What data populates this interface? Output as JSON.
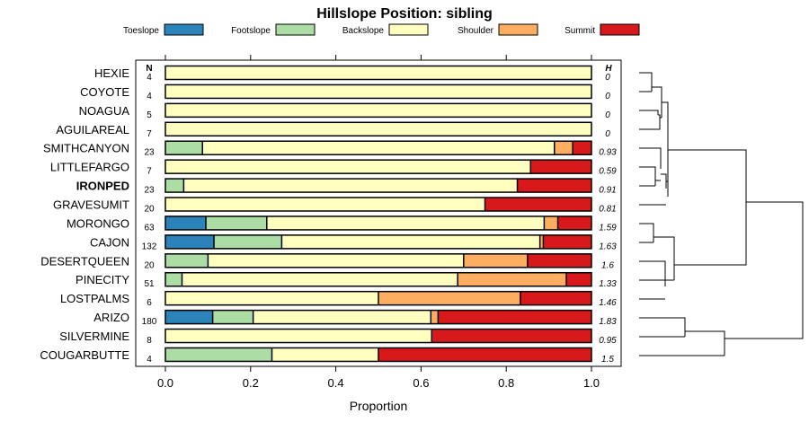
{
  "chart_data": {
    "type": "bar",
    "stacked": true,
    "orientation": "horizontal",
    "title": "Hillslope Position: sibling",
    "xlabel": "Proportion",
    "xlim": [
      0,
      1
    ],
    "x_ticks": [
      "0.0",
      "0.2",
      "0.4",
      "0.6",
      "0.8",
      "1.0"
    ],
    "n_header": "N",
    "h_header": "H",
    "highlighted": "IRONPED",
    "legend_position": "top",
    "legend": [
      {
        "name": "Toeslope",
        "color": "#2b83ba"
      },
      {
        "name": "Footslope",
        "color": "#abdda4"
      },
      {
        "name": "Backslope",
        "color": "#ffffbf"
      },
      {
        "name": "Shoulder",
        "color": "#fdae61"
      },
      {
        "name": "Summit",
        "color": "#d7191c"
      }
    ],
    "categories": [
      "HEXIE",
      "COYOTE",
      "NOAGUA",
      "AGUILAREAL",
      "SMITHCANYON",
      "LITTLEFARGO",
      "IRONPED",
      "GRAVESUMIT",
      "MORONGO",
      "CAJON",
      "DESERTQUEEN",
      "PINECITY",
      "LOSTPALMS",
      "ARIZO",
      "SILVERMINE",
      "COUGARBUTTE"
    ],
    "n": [
      "4",
      "4",
      "5",
      "7",
      "23",
      "7",
      "23",
      "20",
      "63",
      "132",
      "20",
      "51",
      "6",
      "180",
      "8",
      "4"
    ],
    "h": [
      "0",
      "0",
      "0",
      "0",
      "0.93",
      "0.59",
      "0.91",
      "0.81",
      "1.59",
      "1.63",
      "1.6",
      "1.33",
      "1.46",
      "1.83",
      "0.95",
      "1.5"
    ],
    "series": [
      {
        "name": "Toeslope",
        "values": [
          0,
          0,
          0,
          0,
          0,
          0,
          0,
          0,
          0.095,
          0.114,
          0,
          0,
          0,
          0.111,
          0,
          0
        ]
      },
      {
        "name": "Footslope",
        "values": [
          0,
          0,
          0,
          0,
          0.087,
          0,
          0.043,
          0,
          0.143,
          0.159,
          0.1,
          0.039,
          0,
          0.095,
          0,
          0.25
        ]
      },
      {
        "name": "Backslope",
        "values": [
          1,
          1,
          1,
          1,
          0.826,
          0.857,
          0.783,
          0.75,
          0.651,
          0.606,
          0.6,
          0.647,
          0.5,
          0.417,
          0.625,
          0.25
        ]
      },
      {
        "name": "Shoulder",
        "values": [
          0,
          0,
          0,
          0,
          0.043,
          0,
          0,
          0,
          0.032,
          0.008,
          0.15,
          0.255,
          0.333,
          0.017,
          0,
          0
        ]
      },
      {
        "name": "Summit",
        "values": [
          0,
          0,
          0,
          0,
          0.044,
          0.143,
          0.174,
          0.25,
          0.079,
          0.113,
          0.15,
          0.059,
          0.167,
          0.36,
          0.375,
          0.5
        ]
      }
    ]
  }
}
